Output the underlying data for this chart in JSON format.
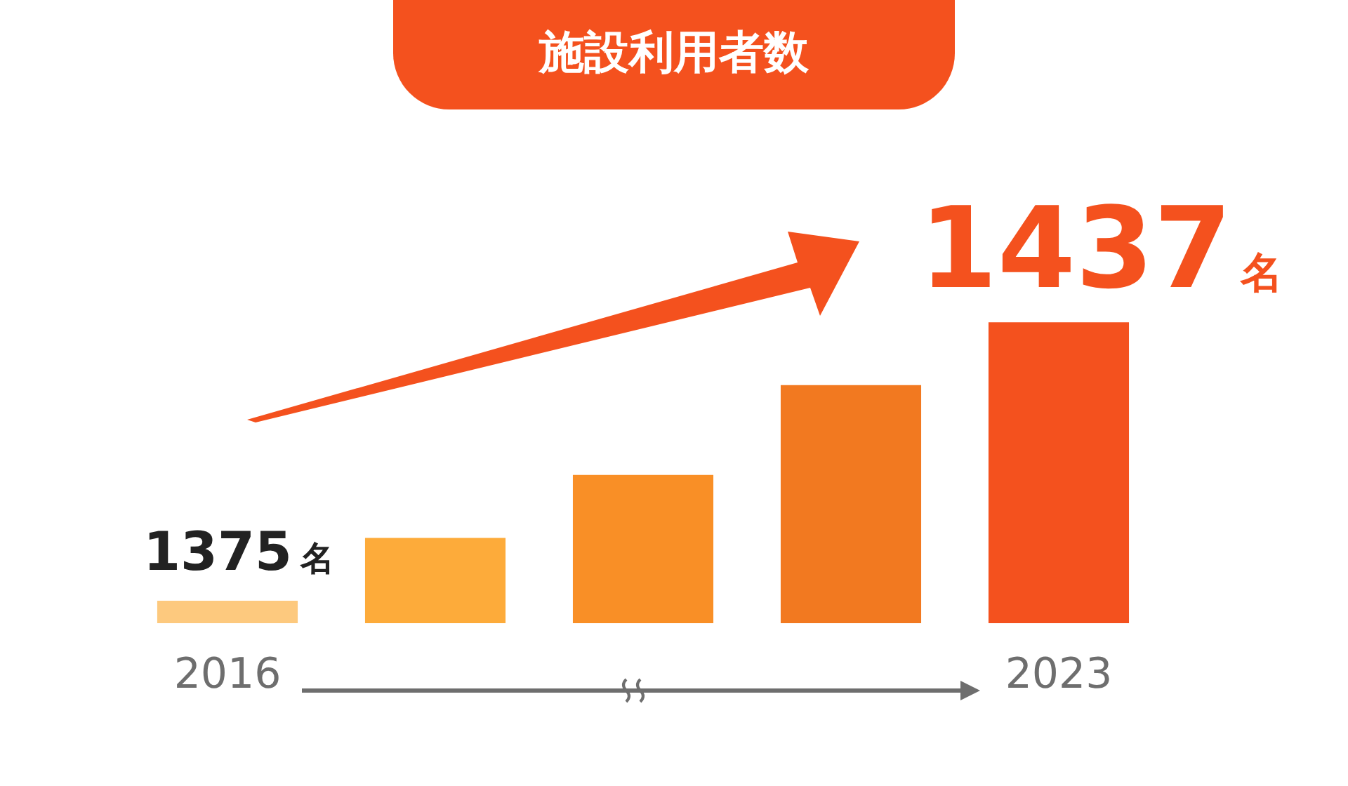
{
  "chart_data": {
    "type": "bar",
    "title": "施設利用者数",
    "categories": [
      "2016",
      null,
      null,
      null,
      "2023"
    ],
    "values": [
      1375,
      1389,
      1403,
      1423,
      1437
    ],
    "colors": [
      "#fdc97e",
      "#fdab3a",
      "#f98f26",
      "#f27920",
      "#f4511e"
    ],
    "value_labels": [
      "1375名",
      null,
      null,
      null,
      "1437名"
    ],
    "grid": false,
    "legend": false
  }
}
